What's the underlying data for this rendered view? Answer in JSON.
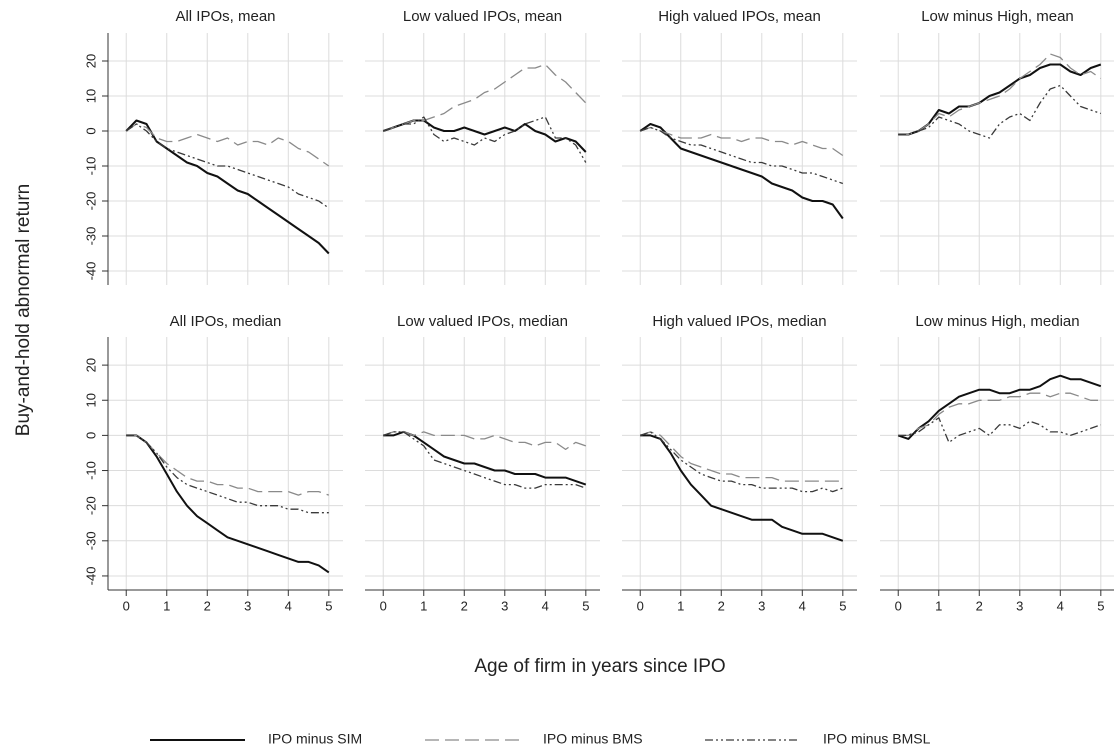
{
  "ylabel": "Buy-and-hold abnormal return",
  "xlabel": "Age of firm in years since IPO",
  "chart_data": [
    {
      "type": "line",
      "title": "All IPOs, mean",
      "x": [
        0,
        0.25,
        0.5,
        0.75,
        1,
        1.25,
        1.5,
        1.75,
        2,
        2.25,
        2.5,
        2.75,
        3,
        3.25,
        3.5,
        3.75,
        4,
        4.25,
        4.5,
        4.75,
        5
      ],
      "xlim": [
        -0.45,
        5.35
      ],
      "xticks": [
        0,
        1,
        2,
        3,
        4,
        5
      ],
      "ylim": [
        -44,
        28
      ],
      "yticks": [
        -40,
        -30,
        -20,
        -10,
        0,
        10,
        20
      ],
      "grid": true,
      "series": [
        {
          "name": "IPO minus SIM",
          "color": "#111111",
          "dash": "solid",
          "values": [
            0,
            3,
            2,
            -3,
            -5,
            -7,
            -9,
            -10,
            -12,
            -13,
            -15,
            -17,
            -18,
            -20,
            -22,
            -24,
            -26,
            -28,
            -30,
            -32,
            -35
          ]
        },
        {
          "name": "IPO minus BMS",
          "color": "#8a8a8a",
          "dash": "dashed",
          "values": [
            0,
            2,
            1,
            -2,
            -3,
            -3,
            -2,
            -1,
            -2,
            -3,
            -2,
            -4,
            -3,
            -3,
            -4,
            -2,
            -3,
            -5,
            -6,
            -8,
            -10
          ]
        },
        {
          "name": "IPO minus BMSL",
          "color": "#3a3a3a",
          "dash": "dashdotdot",
          "values": [
            0,
            2,
            0,
            -3,
            -5,
            -6,
            -7,
            -8,
            -9,
            -10,
            -10,
            -11,
            -12,
            -13,
            -14,
            -15,
            -16,
            -18,
            -19,
            -20,
            -22
          ]
        }
      ]
    },
    {
      "type": "line",
      "title": "Low valued IPOs, mean",
      "x": [
        0,
        0.25,
        0.5,
        0.75,
        1,
        1.25,
        1.5,
        1.75,
        2,
        2.25,
        2.5,
        2.75,
        3,
        3.25,
        3.5,
        3.75,
        4,
        4.25,
        4.5,
        4.75,
        5
      ],
      "xlim": [
        -0.45,
        5.35
      ],
      "xticks": [
        0,
        1,
        2,
        3,
        4,
        5
      ],
      "ylim": [
        -44,
        28
      ],
      "yticks": [
        -40,
        -30,
        -20,
        -10,
        0,
        10,
        20
      ],
      "grid": true,
      "series": [
        {
          "name": "IPO minus SIM",
          "color": "#111111",
          "dash": "solid",
          "values": [
            0,
            1,
            2,
            3,
            3,
            1,
            0,
            0,
            1,
            0,
            -1,
            0,
            1,
            0,
            2,
            0,
            -1,
            -3,
            -2,
            -3,
            -6
          ]
        },
        {
          "name": "IPO minus BMS",
          "color": "#8a8a8a",
          "dash": "dashed",
          "values": [
            0,
            1,
            2,
            3,
            3,
            4,
            5,
            7,
            8,
            9,
            11,
            12,
            14,
            16,
            18,
            18,
            19,
            16,
            14,
            11,
            8
          ]
        },
        {
          "name": "IPO minus BMSL",
          "color": "#3a3a3a",
          "dash": "dashdotdot",
          "values": [
            0,
            1,
            2,
            2,
            4,
            -1,
            -3,
            -2,
            -3,
            -4,
            -2,
            -3,
            -1,
            0,
            2,
            3,
            4,
            -2,
            -2,
            -4,
            -9
          ]
        }
      ]
    },
    {
      "type": "line",
      "title": "High valued IPOs, mean",
      "x": [
        0,
        0.25,
        0.5,
        0.75,
        1,
        1.25,
        1.5,
        1.75,
        2,
        2.25,
        2.5,
        2.75,
        3,
        3.25,
        3.5,
        3.75,
        4,
        4.25,
        4.5,
        4.75,
        5
      ],
      "xlim": [
        -0.45,
        5.35
      ],
      "xticks": [
        0,
        1,
        2,
        3,
        4,
        5
      ],
      "ylim": [
        -44,
        28
      ],
      "yticks": [
        -40,
        -30,
        -20,
        -10,
        0,
        10,
        20
      ],
      "grid": true,
      "series": [
        {
          "name": "IPO minus SIM",
          "color": "#111111",
          "dash": "solid",
          "values": [
            0,
            2,
            1,
            -2,
            -5,
            -6,
            -7,
            -8,
            -9,
            -10,
            -11,
            -12,
            -13,
            -15,
            -16,
            -17,
            -19,
            -20,
            -20,
            -21,
            -25
          ]
        },
        {
          "name": "IPO minus BMS",
          "color": "#8a8a8a",
          "dash": "dashed",
          "values": [
            0,
            1,
            0,
            -1,
            -2,
            -2,
            -2,
            -1,
            -2,
            -2,
            -3,
            -2,
            -2,
            -3,
            -3,
            -4,
            -3,
            -4,
            -5,
            -5,
            -7
          ]
        },
        {
          "name": "IPO minus BMSL",
          "color": "#3a3a3a",
          "dash": "dashdotdot",
          "values": [
            0,
            1,
            0,
            -2,
            -3,
            -4,
            -4,
            -5,
            -6,
            -7,
            -8,
            -9,
            -9,
            -10,
            -10,
            -11,
            -12,
            -12,
            -13,
            -14,
            -15
          ]
        }
      ]
    },
    {
      "type": "line",
      "title": "Low minus High, mean",
      "x": [
        0,
        0.25,
        0.5,
        0.75,
        1,
        1.25,
        1.5,
        1.75,
        2,
        2.25,
        2.5,
        2.75,
        3,
        3.25,
        3.5,
        3.75,
        4,
        4.25,
        4.5,
        4.75,
        5
      ],
      "xlim": [
        -0.45,
        5.35
      ],
      "xticks": [
        0,
        1,
        2,
        3,
        4,
        5
      ],
      "ylim": [
        -44,
        28
      ],
      "yticks": [
        -40,
        -30,
        -20,
        -10,
        0,
        10,
        20
      ],
      "grid": true,
      "series": [
        {
          "name": "IPO minus SIM",
          "color": "#111111",
          "dash": "solid",
          "values": [
            -1,
            -1,
            0,
            2,
            6,
            5,
            7,
            7,
            8,
            10,
            11,
            13,
            15,
            16,
            18,
            19,
            19,
            17,
            16,
            18,
            19
          ]
        },
        {
          "name": "IPO minus BMS",
          "color": "#8a8a8a",
          "dash": "dashed",
          "values": [
            -1,
            -1,
            0,
            2,
            5,
            4,
            6,
            7,
            8,
            9,
            10,
            12,
            15,
            17,
            19,
            22,
            21,
            18,
            16,
            17,
            15
          ]
        },
        {
          "name": "IPO minus BMSL",
          "color": "#3a3a3a",
          "dash": "dashdotdot",
          "values": [
            -1,
            -1,
            0,
            1,
            4,
            3,
            2,
            0,
            -1,
            -2,
            2,
            4,
            5,
            3,
            8,
            12,
            13,
            10,
            7,
            6,
            5
          ]
        }
      ]
    },
    {
      "type": "line",
      "title": "All IPOs, median",
      "x": [
        0,
        0.25,
        0.5,
        0.75,
        1,
        1.25,
        1.5,
        1.75,
        2,
        2.25,
        2.5,
        2.75,
        3,
        3.25,
        3.5,
        3.75,
        4,
        4.25,
        4.5,
        4.75,
        5
      ],
      "xlim": [
        -0.45,
        5.35
      ],
      "xticks": [
        0,
        1,
        2,
        3,
        4,
        5
      ],
      "ylim": [
        -44,
        28
      ],
      "yticks": [
        -40,
        -30,
        -20,
        -10,
        0,
        10,
        20
      ],
      "grid": true,
      "series": [
        {
          "name": "IPO minus SIM",
          "color": "#111111",
          "dash": "solid",
          "values": [
            0,
            0,
            -2,
            -6,
            -11,
            -16,
            -20,
            -23,
            -25,
            -27,
            -29,
            -30,
            -31,
            -32,
            -33,
            -34,
            -35,
            -36,
            -36,
            -37,
            -39
          ]
        },
        {
          "name": "IPO minus BMS",
          "color": "#8a8a8a",
          "dash": "dashed",
          "values": [
            0,
            0,
            -2,
            -5,
            -8,
            -10,
            -12,
            -13,
            -13,
            -14,
            -14,
            -15,
            -15,
            -16,
            -16,
            -16,
            -16,
            -17,
            -16,
            -16,
            -17
          ]
        },
        {
          "name": "IPO minus BMSL",
          "color": "#3a3a3a",
          "dash": "dashdotdot",
          "values": [
            0,
            0,
            -2,
            -5,
            -9,
            -12,
            -14,
            -15,
            -16,
            -17,
            -18,
            -19,
            -19,
            -20,
            -20,
            -20,
            -21,
            -21,
            -22,
            -22,
            -22
          ]
        }
      ]
    },
    {
      "type": "line",
      "title": "Low valued IPOs, median",
      "x": [
        0,
        0.25,
        0.5,
        0.75,
        1,
        1.25,
        1.5,
        1.75,
        2,
        2.25,
        2.5,
        2.75,
        3,
        3.25,
        3.5,
        3.75,
        4,
        4.25,
        4.5,
        4.75,
        5
      ],
      "xlim": [
        -0.45,
        5.35
      ],
      "xticks": [
        0,
        1,
        2,
        3,
        4,
        5
      ],
      "ylim": [
        -44,
        28
      ],
      "yticks": [
        -40,
        -30,
        -20,
        -10,
        0,
        10,
        20
      ],
      "grid": true,
      "series": [
        {
          "name": "IPO minus SIM",
          "color": "#111111",
          "dash": "solid",
          "values": [
            0,
            0,
            1,
            0,
            -2,
            -4,
            -6,
            -7,
            -8,
            -8,
            -9,
            -10,
            -10,
            -11,
            -11,
            -11,
            -12,
            -12,
            -12,
            -13,
            -14
          ]
        },
        {
          "name": "IPO minus BMS",
          "color": "#8a8a8a",
          "dash": "dashed",
          "values": [
            0,
            1,
            1,
            0,
            1,
            0,
            0,
            0,
            0,
            -1,
            -1,
            0,
            -1,
            -2,
            -2,
            -3,
            -2,
            -2,
            -4,
            -2,
            -3
          ]
        },
        {
          "name": "IPO minus BMSL",
          "color": "#3a3a3a",
          "dash": "dashdotdot",
          "values": [
            0,
            1,
            1,
            -1,
            -3,
            -7,
            -8,
            -9,
            -10,
            -11,
            -12,
            -13,
            -14,
            -14,
            -15,
            -15,
            -14,
            -14,
            -14,
            -14,
            -15
          ]
        }
      ]
    },
    {
      "type": "line",
      "title": "High valued IPOs, median",
      "x": [
        0,
        0.25,
        0.5,
        0.75,
        1,
        1.25,
        1.5,
        1.75,
        2,
        2.25,
        2.5,
        2.75,
        3,
        3.25,
        3.5,
        3.75,
        4,
        4.25,
        4.5,
        4.75,
        5
      ],
      "xlim": [
        -0.45,
        5.35
      ],
      "xticks": [
        0,
        1,
        2,
        3,
        4,
        5
      ],
      "ylim": [
        -44,
        28
      ],
      "yticks": [
        -40,
        -30,
        -20,
        -10,
        0,
        10,
        20
      ],
      "grid": true,
      "series": [
        {
          "name": "IPO minus SIM",
          "color": "#111111",
          "dash": "solid",
          "values": [
            0,
            0,
            -1,
            -5,
            -10,
            -14,
            -17,
            -20,
            -21,
            -22,
            -23,
            -24,
            -24,
            -24,
            -26,
            -27,
            -28,
            -28,
            -28,
            -29,
            -30
          ]
        },
        {
          "name": "IPO minus BMS",
          "color": "#8a8a8a",
          "dash": "dashed",
          "values": [
            0,
            1,
            0,
            -3,
            -6,
            -8,
            -9,
            -10,
            -11,
            -11,
            -12,
            -12,
            -12,
            -12,
            -13,
            -13,
            -13,
            -13,
            -13,
            -13,
            -13
          ]
        },
        {
          "name": "IPO minus BMSL",
          "color": "#3a3a3a",
          "dash": "dashdotdot",
          "values": [
            0,
            1,
            -1,
            -4,
            -7,
            -9,
            -11,
            -12,
            -13,
            -13,
            -14,
            -14,
            -15,
            -15,
            -15,
            -15,
            -16,
            -16,
            -15,
            -16,
            -15
          ]
        }
      ]
    },
    {
      "type": "line",
      "title": "Low minus High, median",
      "x": [
        0,
        0.25,
        0.5,
        0.75,
        1,
        1.25,
        1.5,
        1.75,
        2,
        2.25,
        2.5,
        2.75,
        3,
        3.25,
        3.5,
        3.75,
        4,
        4.25,
        4.5,
        4.75,
        5
      ],
      "xlim": [
        -0.45,
        5.35
      ],
      "xticks": [
        0,
        1,
        2,
        3,
        4,
        5
      ],
      "ylim": [
        -44,
        28
      ],
      "yticks": [
        -40,
        -30,
        -20,
        -10,
        0,
        10,
        20
      ],
      "grid": true,
      "series": [
        {
          "name": "IPO minus SIM",
          "color": "#111111",
          "dash": "solid",
          "values": [
            0,
            -1,
            2,
            4,
            7,
            9,
            11,
            12,
            13,
            13,
            12,
            12,
            13,
            13,
            14,
            16,
            17,
            16,
            16,
            15,
            14
          ]
        },
        {
          "name": "IPO minus BMS",
          "color": "#8a8a8a",
          "dash": "dashed",
          "values": [
            0,
            0,
            2,
            3,
            6,
            8,
            9,
            9,
            10,
            10,
            10,
            11,
            11,
            12,
            12,
            11,
            12,
            12,
            11,
            10,
            10
          ]
        },
        {
          "name": "IPO minus BMSL",
          "color": "#3a3a3a",
          "dash": "dashdotdot",
          "values": [
            0,
            0,
            1,
            3,
            5,
            -2,
            0,
            1,
            2,
            0,
            3,
            3,
            2,
            4,
            3,
            1,
            1,
            0,
            1,
            2,
            3
          ]
        }
      ]
    }
  ]
}
